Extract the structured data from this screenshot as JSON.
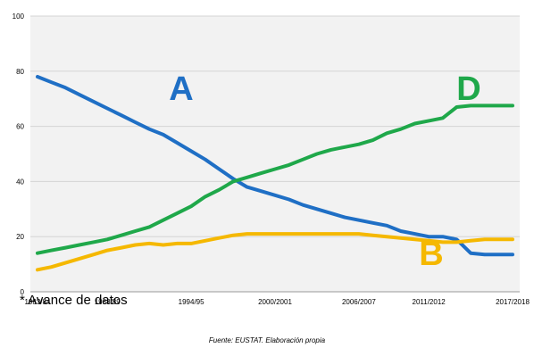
{
  "chart_data": {
    "type": "line",
    "ylim": [
      0,
      100
    ],
    "yticks": [
      0,
      20,
      40,
      60,
      80,
      100
    ],
    "x": [
      "1983/84",
      "1984/85",
      "1985/86",
      "1986/87",
      "1987/88",
      "1988/89",
      "1989/90",
      "1990/91",
      "1991/92",
      "1992/93",
      "1993/94",
      "1994/95",
      "1995/96",
      "1996/97",
      "1997/98",
      "1998/99",
      "1999/00",
      "2000/2001",
      "2001/02",
      "2002/03",
      "2003/04",
      "2004/05",
      "2005/06",
      "2006/2007",
      "2007/08",
      "2008/09",
      "2009/10",
      "2010/11",
      "2011/2012",
      "2012/13",
      "2013/14",
      "2014/15",
      "2015/16",
      "2016/17",
      "2017/2018"
    ],
    "xtick_labels": [
      "1983/84",
      "1988/89",
      "1994/95",
      "2000/2001",
      "2006/2007",
      "2011/2012",
      "2017/2018"
    ],
    "grid": true,
    "series": [
      {
        "name": "A",
        "color": "#1f6fc5",
        "values": [
          78,
          76,
          74,
          71.5,
          69,
          66.5,
          64,
          61.5,
          59,
          57,
          54,
          51,
          48,
          44.5,
          41,
          38,
          36.5,
          35,
          33.5,
          31.5,
          30,
          28.5,
          27,
          26,
          25,
          24,
          22,
          21,
          20,
          20,
          19,
          14,
          13.5,
          13.5,
          13.5
        ]
      },
      {
        "name": "B",
        "color": "#f5b800",
        "values": [
          8,
          9,
          10.5,
          12,
          13.5,
          15,
          16,
          17,
          17.5,
          17,
          17.5,
          17.5,
          18.5,
          19.5,
          20.5,
          21,
          21,
          21,
          21,
          21,
          21,
          21,
          21,
          21,
          20.5,
          20,
          19.5,
          19,
          18.5,
          18,
          18,
          18.5,
          19,
          19,
          19
        ]
      },
      {
        "name": "D",
        "color": "#1fa84a",
        "values": [
          14,
          15,
          16,
          17,
          18,
          19,
          20.5,
          22,
          23.5,
          26,
          28.5,
          31,
          34.5,
          37,
          40,
          41.5,
          43,
          44.5,
          46,
          48,
          50,
          51.5,
          52.5,
          53.5,
          55,
          57.5,
          59,
          61,
          62,
          63,
          67,
          67.5,
          67.5,
          67.5,
          67.5
        ]
      }
    ],
    "series_labels": {
      "A": "A",
      "B": "B",
      "D": "D"
    }
  },
  "footnote": "* Avance de datos",
  "source": "Fuente: EUSTAT. Elaboración propia"
}
